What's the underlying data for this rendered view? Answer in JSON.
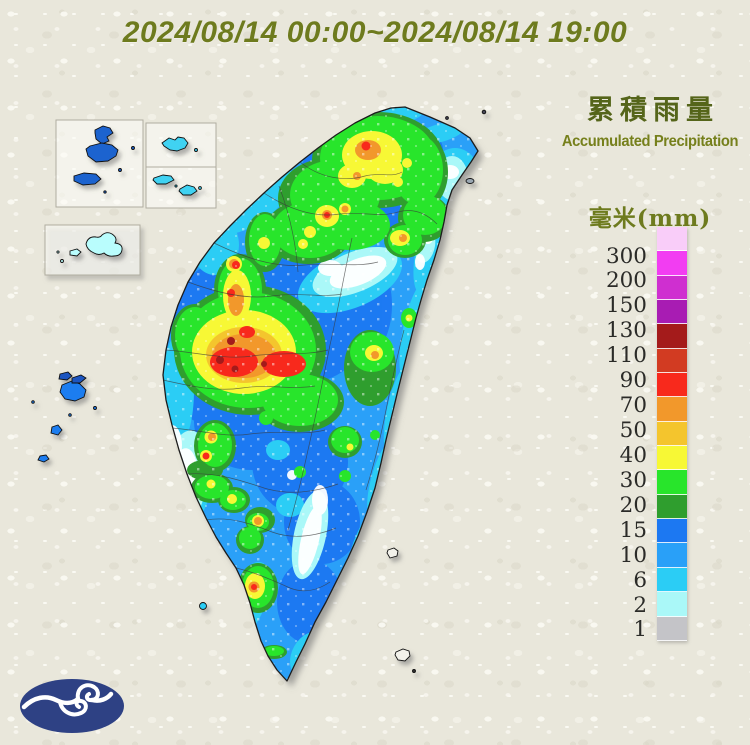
{
  "title": "2024/08/14 00:00~2024/08/14 19:00",
  "legend": {
    "title_zh": "累積雨量",
    "title_en": "Accumulated Precipitation",
    "unit": "毫米(mm)",
    "scale": {
      "colors": [
        "#f9cdf9",
        "#f23df2",
        "#cf2fd0",
        "#a81cb3",
        "#a41b1b",
        "#d23b22",
        "#f8291c",
        "#f2982b",
        "#f4c52d",
        "#f7f835",
        "#28e52b",
        "#2f9e2e",
        "#1c78f2",
        "#29a0f8",
        "#2bcdf5",
        "#aaf8f8",
        "#c4c4c8"
      ],
      "labels": [
        "300",
        "200",
        "150",
        "130",
        "110",
        "90",
        "70",
        "50",
        "40",
        "30",
        "20",
        "15",
        "10",
        "6",
        "2",
        "1"
      ]
    }
  },
  "map": {
    "region_icons": [
      "taiwan-island",
      "matsu-inset-islands",
      "dongyin-inset-island",
      "kinmen-inset-islands",
      "penghu-inset-island",
      "penghu-islands",
      "liuqiu-islet",
      "green-island",
      "orchid-island",
      "guishan-islet"
    ]
  },
  "footer": {
    "logo_icon": "cwb-wave-logo"
  },
  "colors": {
    "title_text": "#6e7b1e",
    "legend_title_zh": "#55651a",
    "legend_numbers": "#2b2b28",
    "logo_navy": "#2e4184",
    "background_paper": "#e9e7db"
  }
}
